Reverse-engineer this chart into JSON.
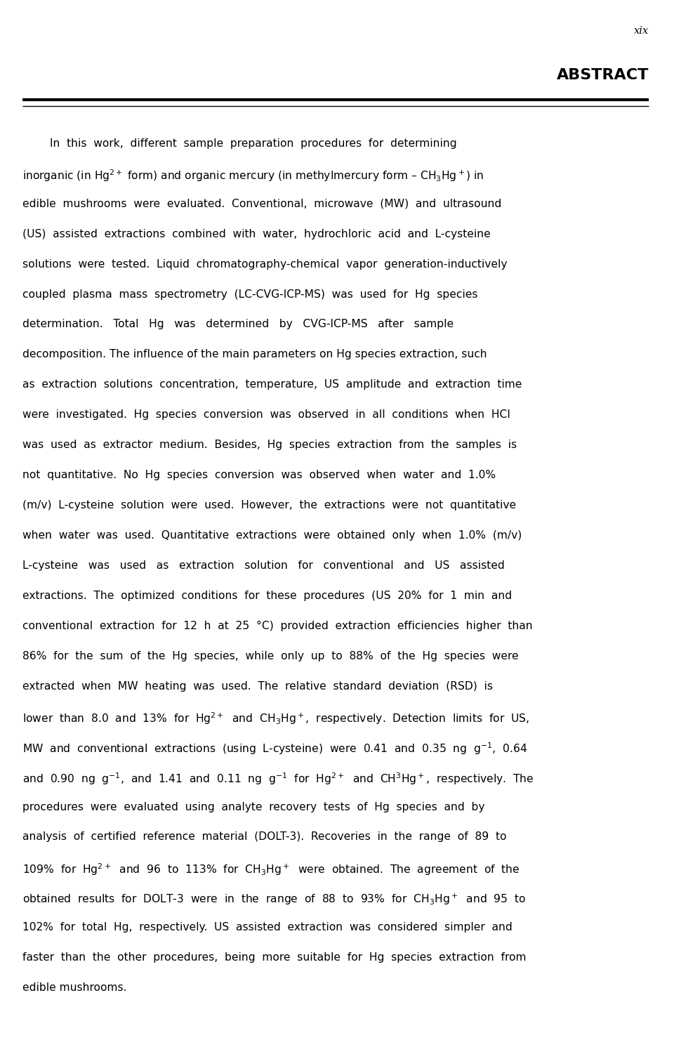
{
  "page_number": "xix",
  "title": "ABSTRACT",
  "background_color": "#ffffff",
  "text_color": "#000000",
  "title_fontsize": 16,
  "body_fontsize": 11.2,
  "page_num_fontsize": 10.5,
  "lines": [
    "        In  this  work,  different  sample  preparation  procedures  for  determining",
    "inorganic (in Hg$^{2+}$ form) and organic mercury (in methylmercury form – CH$_3$Hg$^+$) in",
    "edible  mushrooms  were  evaluated.  Conventional,  microwave  (MW)  and  ultrasound",
    "(US)  assisted  extractions  combined  with  water,  hydrochloric  acid  and  L-cysteine",
    "solutions  were  tested.  Liquid  chromatography-chemical  vapor  generation-inductively",
    "coupled  plasma  mass  spectrometry  (LC-CVG-ICP-MS)  was  used  for  Hg  species",
    "determination.   Total   Hg   was   determined   by   CVG-ICP-MS   after   sample",
    "decomposition. The influence of the main parameters on Hg species extraction, such",
    "as  extraction  solutions  concentration,  temperature,  US  amplitude  and  extraction  time",
    "were  investigated.  Hg  species  conversion  was  observed  in  all  conditions  when  HCl",
    "was  used  as  extractor  medium.  Besides,  Hg  species  extraction  from  the  samples  is",
    "not  quantitative.  No  Hg  species  conversion  was  observed  when  water  and  1.0%",
    "(m/v)  L-cysteine  solution  were  used.  However,  the  extractions  were  not  quantitative",
    "when  water  was  used.  Quantitative  extractions  were  obtained  only  when  1.0%  (m/v)",
    "L-cysteine   was   used   as   extraction   solution   for   conventional   and   US   assisted",
    "extractions.  The  optimized  conditions  for  these  procedures  (US  20%  for  1  min  and",
    "conventional  extraction  for  12  h  at  25  °C)  provided  extraction  efficiencies  higher  than",
    "86%  for  the  sum  of  the  Hg  species,  while  only  up  to  88%  of  the  Hg  species  were",
    "extracted  when  MW  heating  was  used.  The  relative  standard  deviation  (RSD)  is",
    "lower  than  8.0  and  13%  for  Hg$^{2+}$  and  CH$_3$Hg$^+$,  respectively.  Detection  limits  for  US,",
    "MW  and  conventional  extractions  (using  L-cysteine)  were  0.41  and  0.35  ng  g$^{-1}$,  0.64",
    "and  0.90  ng  g$^{-1}$,  and  1.41  and  0.11  ng  g$^{-1}$  for  Hg$^{2+}$  and  CH$^3$Hg$^+$,  respectively.  The",
    "procedures  were  evaluated  using  analyte  recovery  tests  of  Hg  species  and  by",
    "analysis  of  certified  reference  material  (DOLT-3).  Recoveries  in  the  range  of  89  to",
    "109%  for  Hg$^{2+}$  and  96  to  113%  for  CH$_3$Hg$^+$  were  obtained.  The  agreement  of  the",
    "obtained  results  for  DOLT-3  were  in  the  range  of  88  to  93%  for  CH$_3$Hg$^+$  and  95  to",
    "102%  for  total  Hg,  respectively.  US  assisted  extraction  was  considered  simpler  and",
    "faster  than  the  other  procedures,  being  more  suitable  for  Hg  species  extraction  from",
    "edible mushrooms."
  ]
}
